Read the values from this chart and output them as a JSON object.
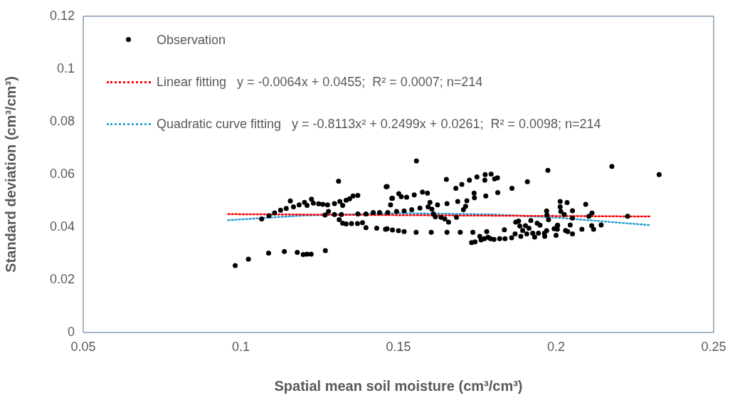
{
  "chart_data": {
    "type": "scatter",
    "xlabel": "Spatial mean soil moisture (cm³/cm³)",
    "ylabel": "Standard deviation (cm³/cm³)",
    "xlim": [
      0.05,
      0.25
    ],
    "xticks": [
      0.05,
      0.1,
      0.15,
      0.2,
      0.25
    ],
    "ylim": [
      0,
      0.12
    ],
    "yticks": [
      0,
      0.02,
      0.04,
      0.06,
      0.08,
      0.1,
      0.12
    ],
    "grid": false,
    "legend": "top left",
    "marker": "circle",
    "series": [
      {
        "name": "Observation",
        "type": "scatter",
        "color": "#000000",
        "x": [
          0.0982,
          0.1024,
          0.1088,
          0.1138,
          0.1179,
          0.1198,
          0.121,
          0.1223,
          0.1268,
          0.131,
          0.1461,
          0.1066,
          0.1089,
          0.1107,
          0.1126,
          0.1144,
          0.1157,
          0.1167,
          0.1185,
          0.1202,
          0.121,
          0.1224,
          0.123,
          0.1247,
          0.126,
          0.1275,
          0.1297,
          0.1314,
          0.1323,
          0.1334,
          0.1345,
          0.1356,
          0.1371,
          0.1267,
          0.1278,
          0.1297,
          0.1312,
          0.1319,
          0.1323,
          0.1334,
          0.1351,
          0.1371,
          0.137,
          0.1386,
          0.1397,
          0.1397,
          0.142,
          0.1431,
          0.144,
          0.1459,
          0.1466,
          0.1479,
          0.1557,
          0.1464,
          0.1481,
          0.1475,
          0.1501,
          0.1509,
          0.1526,
          0.1494,
          0.1518,
          0.1542,
          0.155,
          0.1568,
          0.1576,
          0.1592,
          0.1594,
          0.16,
          0.1606,
          0.1611,
          0.1617,
          0.1624,
          0.1635,
          0.1647,
          0.1659,
          0.1654,
          0.1652,
          0.1682,
          0.1684,
          0.1688,
          0.1701,
          0.1706,
          0.1713,
          0.1717,
          0.1725,
          0.174,
          0.1741,
          0.1749,
          0.1775,
          0.1774,
          0.1794,
          0.1805,
          0.1814,
          0.1777,
          0.1815,
          0.186,
          0.1909,
          0.1974,
          0.1464,
          0.1481,
          0.15,
          0.1518,
          0.1556,
          0.1604,
          0.1654,
          0.1696,
          0.1736,
          0.1732,
          0.1743,
          0.1758,
          0.1762,
          0.178,
          0.1784,
          0.1773,
          0.1792,
          0.1803,
          0.1821,
          0.1836,
          0.1838,
          0.1859,
          0.187,
          0.1872,
          0.1881,
          0.1885,
          0.1888,
          0.1894,
          0.1903,
          0.1907,
          0.1914,
          0.192,
          0.1926,
          0.1932,
          0.194,
          0.1944,
          0.1949,
          0.1963,
          0.1964,
          0.197,
          0.1971,
          0.197,
          0.1976,
          0.1994,
          0.2,
          0.2005,
          0.2013,
          0.2013,
          0.2015,
          0.2177,
          0.2327,
          0.2227,
          0.2035,
          0.2026,
          0.2052,
          0.2052,
          0.2004,
          0.2004,
          0.203,
          0.2037,
          0.2045,
          0.2052,
          0.2082,
          0.2094,
          0.2104,
          0.2114,
          0.2113,
          0.2119,
          0.2143
        ],
        "values": [
          0.0254,
          0.0278,
          0.0301,
          0.0307,
          0.0304,
          0.0296,
          0.0297,
          0.0297,
          0.0311,
          0.0574,
          0.0553,
          0.0431,
          0.0443,
          0.0454,
          0.0464,
          0.0471,
          0.0499,
          0.0477,
          0.0484,
          0.0494,
          0.0482,
          0.0506,
          0.0491,
          0.0488,
          0.0486,
          0.0484,
          0.0489,
          0.0497,
          0.0482,
          0.0502,
          0.0507,
          0.0518,
          0.052,
          0.0446,
          0.0459,
          0.0448,
          0.0428,
          0.0448,
          0.0415,
          0.0412,
          0.0413,
          0.045,
          0.0413,
          0.0417,
          0.0398,
          0.045,
          0.0455,
          0.0396,
          0.0455,
          0.0392,
          0.0455,
          0.0509,
          0.0651,
          0.0554,
          0.0509,
          0.0484,
          0.0527,
          0.0515,
          0.0513,
          0.0459,
          0.0461,
          0.0466,
          0.0522,
          0.0472,
          0.0533,
          0.0529,
          0.0477,
          0.0494,
          0.0468,
          0.045,
          0.0439,
          0.0484,
          0.0437,
          0.0431,
          0.0419,
          0.0489,
          0.0581,
          0.0547,
          0.0437,
          0.0497,
          0.0562,
          0.0466,
          0.0479,
          0.05,
          0.0578,
          0.0529,
          0.0511,
          0.059,
          0.0599,
          0.0578,
          0.0601,
          0.0583,
          0.0587,
          0.0518,
          0.0531,
          0.0547,
          0.0572,
          0.0615,
          0.0394,
          0.0389,
          0.0386,
          0.0383,
          0.038,
          0.038,
          0.038,
          0.038,
          0.038,
          0.0341,
          0.0344,
          0.0365,
          0.0351,
          0.0383,
          0.0361,
          0.0356,
          0.0356,
          0.0353,
          0.0356,
          0.039,
          0.0356,
          0.0359,
          0.0374,
          0.0419,
          0.0423,
          0.0404,
          0.0365,
          0.0387,
          0.0405,
          0.0374,
          0.0396,
          0.0425,
          0.0377,
          0.0362,
          0.0415,
          0.0377,
          0.0407,
          0.0377,
          0.0365,
          0.0386,
          0.0446,
          0.0461,
          0.0428,
          0.0394,
          0.0369,
          0.0407,
          0.0497,
          0.0477,
          0.0459,
          0.063,
          0.0599,
          0.0441,
          0.0493,
          0.0448,
          0.0462,
          0.0434,
          0.0405,
          0.0392,
          0.0387,
          0.0383,
          0.0408,
          0.0374,
          0.0392,
          0.0486,
          0.0441,
          0.0453,
          0.0405,
          0.0392,
          0.0408
        ]
      },
      {
        "name": "Linear fitting   y = -0.0064x + 0.0455;  R² = 0.0007; n=214",
        "type": "line",
        "color": "#ff0000",
        "line_style": "dotted",
        "marker": "none",
        "x": [
          0.096,
          0.23
        ],
        "values": [
          0.0449,
          0.044
        ]
      },
      {
        "name": "Quadratic curve fitting   y = -0.8113x² + 0.2499x + 0.0261;  R² = 0.0098; n=214",
        "type": "line",
        "color": "#2e9fd8",
        "line_style": "dotted",
        "marker": "none",
        "x": [
          0.096,
          0.12,
          0.15,
          0.18,
          0.2,
          0.23
        ],
        "values": [
          0.0426,
          0.0444,
          0.0453,
          0.0448,
          0.0436,
          0.0407
        ]
      }
    ]
  }
}
